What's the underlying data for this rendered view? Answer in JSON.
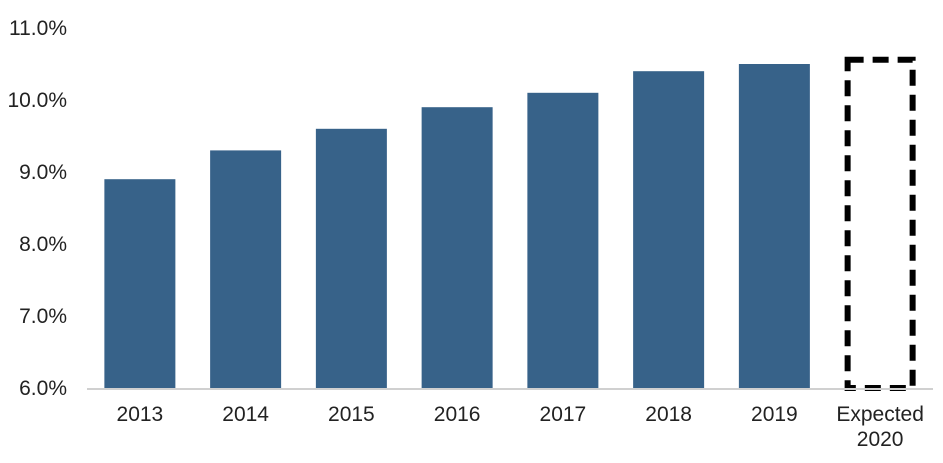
{
  "chart_data": {
    "type": "bar",
    "title": "",
    "xlabel": "",
    "ylabel": "",
    "ylim": [
      6.0,
      11.0
    ],
    "yticks": [
      "6.0%",
      "7.0%",
      "8.0%",
      "9.0%",
      "10.0%",
      "11.0%"
    ],
    "ytick_values": [
      6.0,
      7.0,
      8.0,
      9.0,
      10.0,
      11.0
    ],
    "categories": [
      "2013",
      "2014",
      "2015",
      "2016",
      "2017",
      "2018",
      "2019",
      "Expected 2020"
    ],
    "category_lines": [
      [
        "2013"
      ],
      [
        "2014"
      ],
      [
        "2015"
      ],
      [
        "2016"
      ],
      [
        "2017"
      ],
      [
        "2018"
      ],
      [
        "2019"
      ],
      [
        "Expected",
        "2020"
      ]
    ],
    "values": [
      8.9,
      9.3,
      9.6,
      9.9,
      10.1,
      10.4,
      10.5,
      10.6
    ],
    "bar_styles": [
      "solid",
      "solid",
      "solid",
      "solid",
      "solid",
      "solid",
      "solid",
      "dashed-outline"
    ],
    "bar_color": "#376289",
    "expected_outline_color": "#000000",
    "axis_color": "#d0d0d0",
    "grid": false,
    "legend": "none"
  }
}
